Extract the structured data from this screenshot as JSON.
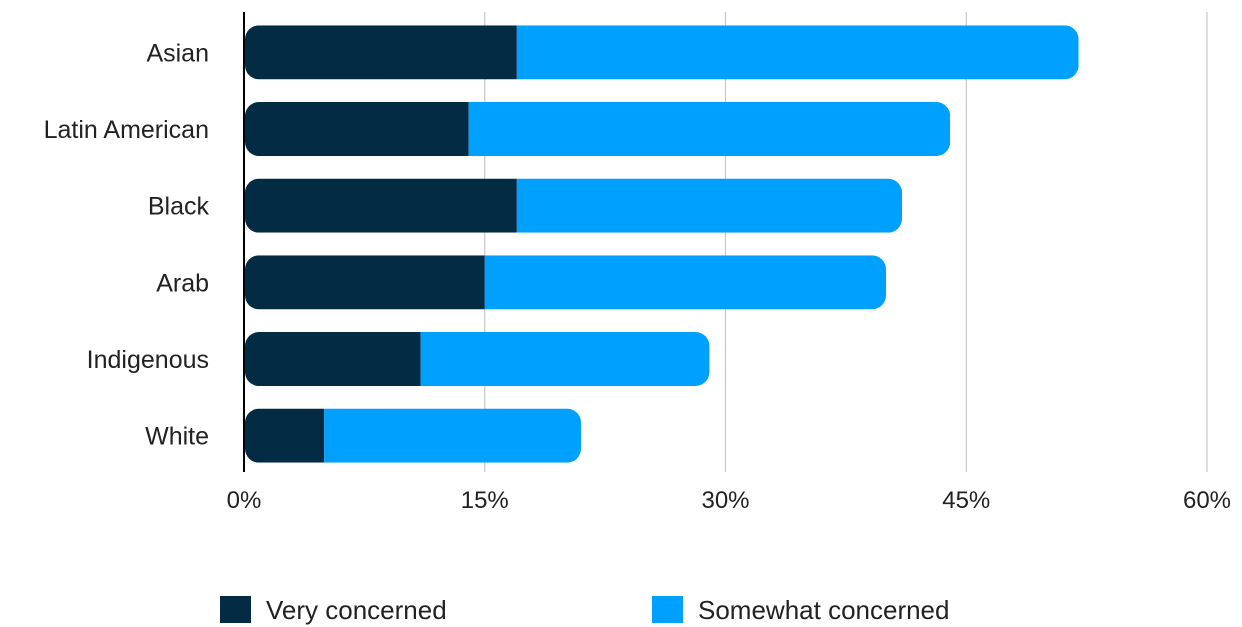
{
  "chart_data": {
    "type": "bar",
    "orientation": "horizontal",
    "stacked": true,
    "categories": [
      "Asian",
      "Latin American",
      "Black",
      "Arab",
      "Indigenous",
      "White"
    ],
    "series": [
      {
        "name": "Very concerned",
        "values": [
          17,
          14,
          17,
          15,
          11,
          5
        ],
        "color": "#032b44"
      },
      {
        "name": "Somewhat concerned",
        "values": [
          35,
          30,
          24,
          25,
          18,
          16
        ],
        "color": "#00a1fe"
      }
    ],
    "xlim": [
      0,
      60
    ],
    "xticks": [
      0,
      15,
      30,
      45,
      60
    ],
    "xtick_labels": [
      "0%",
      "15%",
      "30%",
      "45%",
      "60%"
    ],
    "grid": "vertical",
    "legend_position": "bottom"
  }
}
